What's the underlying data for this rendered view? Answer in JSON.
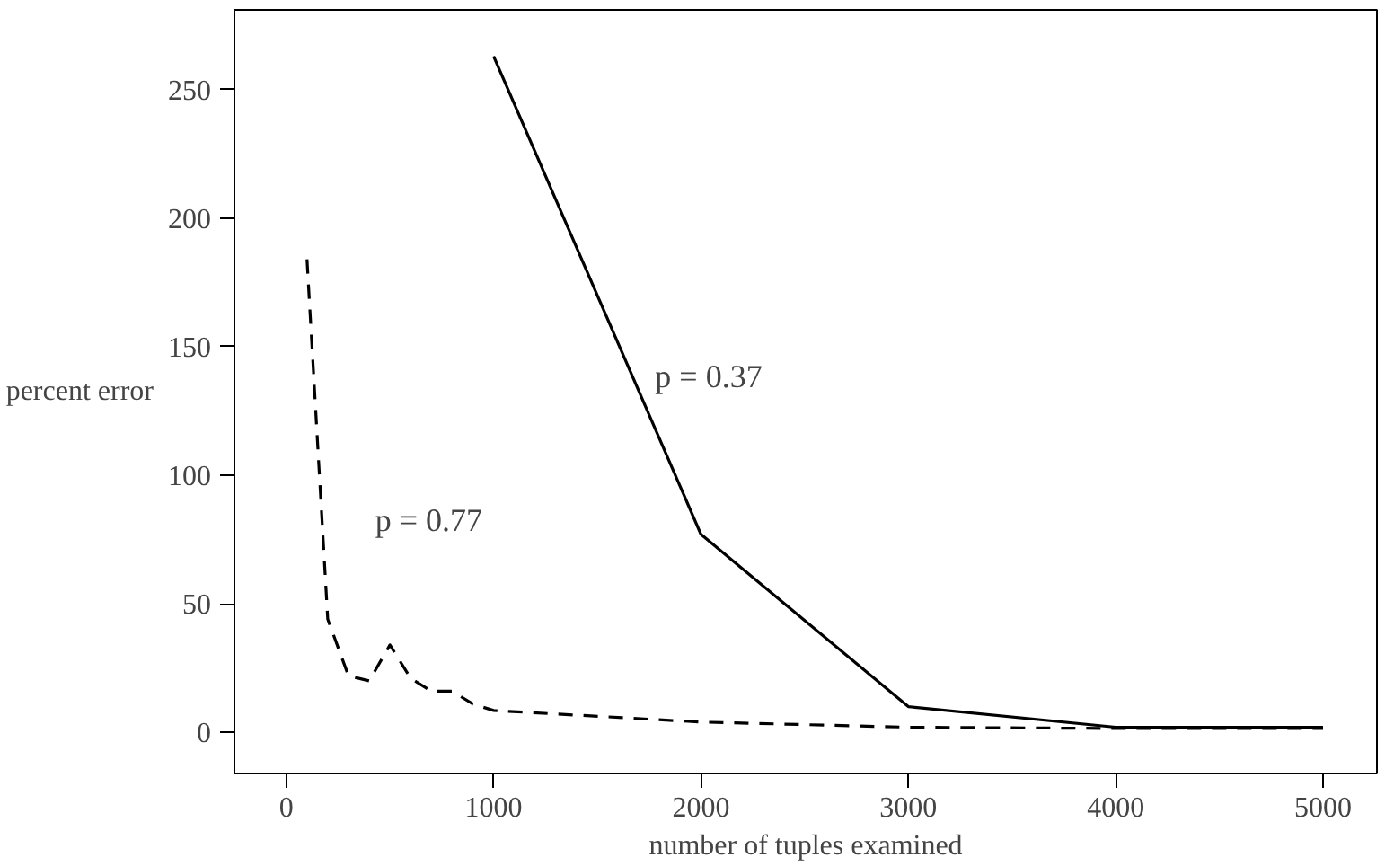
{
  "chart_data": {
    "type": "line",
    "xlabel": "number of tuples examined",
    "ylabel": "percent error",
    "xlim": [
      -250,
      5260
    ],
    "ylim": [
      -16,
      281
    ],
    "xticks": [
      0,
      1000,
      2000,
      3000,
      4000,
      5000
    ],
    "yticks": [
      0,
      50,
      100,
      150,
      200,
      250
    ],
    "grid": false,
    "legend": false,
    "series": [
      {
        "name": "p = 0.37",
        "color": "#000000",
        "line_style": "solid",
        "x": [
          1000,
          2000,
          3000,
          4000,
          5000
        ],
        "values": [
          263,
          77,
          10,
          2,
          2
        ]
      },
      {
        "name": "p = 0.77",
        "color": "#000000",
        "line_style": "dashed",
        "x": [
          100,
          200,
          300,
          400,
          500,
          600,
          700,
          800,
          900,
          1000,
          2000,
          3000,
          4000,
          5000
        ],
        "values": [
          184,
          44,
          22,
          20,
          34,
          21,
          16,
          16,
          11,
          8.5,
          4,
          2,
          1.5,
          1.5
        ]
      }
    ]
  }
}
